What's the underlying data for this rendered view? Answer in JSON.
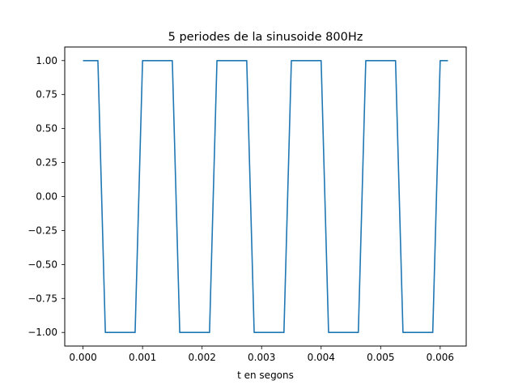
{
  "chart_data": {
    "type": "line",
    "title": "5 periodes de la sinusoide 800Hz",
    "xlabel": "t en segons",
    "ylabel": "",
    "xlim": [
      -0.000307,
      0.006437
    ],
    "ylim": [
      -1.1,
      1.1
    ],
    "grid": false,
    "xticks": [
      0.0,
      0.001,
      0.002,
      0.003,
      0.004,
      0.005,
      0.006
    ],
    "xtick_labels": [
      "0.000",
      "0.001",
      "0.002",
      "0.003",
      "0.004",
      "0.005",
      "0.006"
    ],
    "yticks": [
      -1.0,
      -0.75,
      -0.5,
      -0.25,
      0.0,
      0.25,
      0.5,
      0.75,
      1.0
    ],
    "ytick_labels": [
      "−1.00",
      "−0.75",
      "−0.50",
      "−0.25",
      "0.00",
      "0.25",
      "0.50",
      "0.75",
      "1.00"
    ],
    "series": [
      {
        "color": "#1f77b4",
        "x": [
          0.0,
          0.00025,
          0.000375,
          0.000875,
          0.001,
          0.0015,
          0.001625,
          0.002125,
          0.00225,
          0.00275,
          0.002875,
          0.003375,
          0.0035,
          0.004,
          0.004125,
          0.004625,
          0.00475,
          0.00525,
          0.005375,
          0.005875,
          0.006,
          0.00613
        ],
        "y": [
          1,
          1,
          -1,
          -1,
          1,
          1,
          -1,
          -1,
          1,
          1,
          -1,
          -1,
          1,
          1,
          -1,
          -1,
          1,
          1,
          -1,
          -1,
          1,
          1
        ]
      }
    ]
  }
}
